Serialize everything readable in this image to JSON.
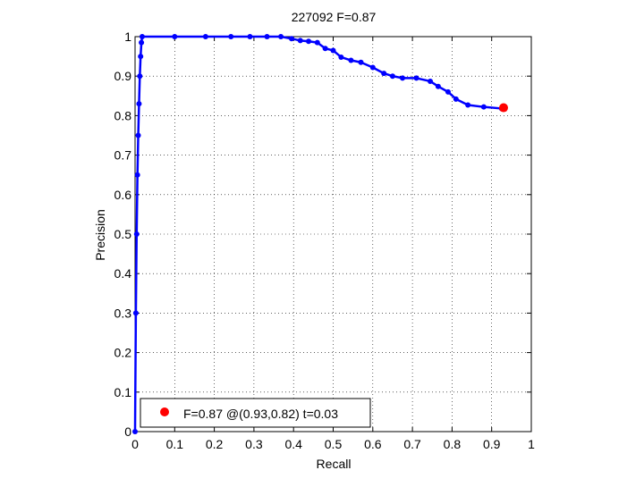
{
  "chart_data": {
    "type": "line",
    "title": "227092 F=0.87",
    "xlabel": "Recall",
    "ylabel": "Precision",
    "xlim": [
      0,
      1
    ],
    "ylim": [
      0,
      1
    ],
    "xticks": [
      "0",
      "0.1",
      "0.2",
      "0.3",
      "0.4",
      "0.5",
      "0.6",
      "0.7",
      "0.8",
      "0.9",
      "1"
    ],
    "yticks": [
      "0",
      "0.1",
      "0.2",
      "0.3",
      "0.4",
      "0.5",
      "0.6",
      "0.7",
      "0.8",
      "0.9",
      "1"
    ],
    "grid": true,
    "legend_position": "bottom-left",
    "series": [
      {
        "color": "#0000ff",
        "x": [
          0.0,
          0.002,
          0.004,
          0.006,
          0.008,
          0.01,
          0.012,
          0.014,
          0.016,
          0.018,
          0.1,
          0.178,
          0.242,
          0.29,
          0.333,
          0.368,
          0.395,
          0.417,
          0.438,
          0.46,
          0.48,
          0.5,
          0.52,
          0.545,
          0.57,
          0.6,
          0.628,
          0.65,
          0.675,
          0.71,
          0.745,
          0.765,
          0.79,
          0.81,
          0.84,
          0.88,
          0.925
        ],
        "y": [
          0.0,
          0.3,
          0.5,
          0.65,
          0.75,
          0.83,
          0.9,
          0.95,
          0.985,
          1.0,
          1.0,
          1.0,
          1.0,
          1.0,
          1.0,
          1.0,
          0.995,
          0.99,
          0.988,
          0.985,
          0.97,
          0.965,
          0.948,
          0.94,
          0.935,
          0.922,
          0.907,
          0.9,
          0.895,
          0.895,
          0.887,
          0.874,
          0.86,
          0.842,
          0.827,
          0.822,
          0.818
        ]
      }
    ],
    "best_point": {
      "recall": 0.93,
      "precision": 0.82,
      "color": "#ff0000"
    },
    "legend": {
      "label": "F=0.87 @(0.93,0.82) t=0.03"
    }
  }
}
